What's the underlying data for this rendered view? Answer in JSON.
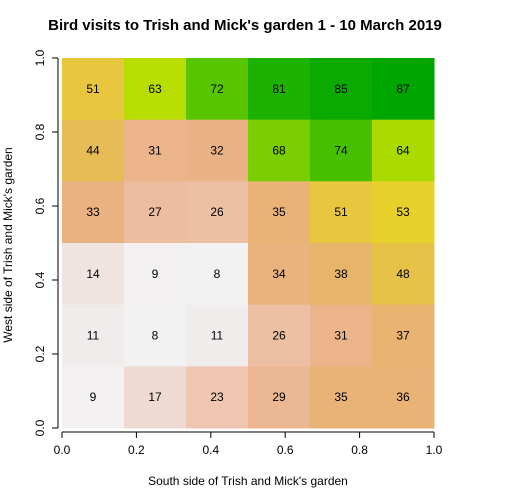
{
  "chart_data": {
    "type": "heatmap",
    "title": "Bird visits to Trish and Mick's garden 1 - 10 March 2019",
    "xlabel": "South side of Trish and Mick's garden",
    "ylabel": "West side of Trish and Mick's garden",
    "xlim": [
      0,
      1
    ],
    "ylim": [
      0,
      1
    ],
    "xticks": [
      "0.0",
      "0.2",
      "0.4",
      "0.6",
      "0.8",
      "1.0"
    ],
    "yticks": [
      "0.0",
      "0.2",
      "0.4",
      "0.6",
      "0.8",
      "1.0"
    ],
    "n_cols": 6,
    "n_rows": 6,
    "rows_top_to_bottom": [
      [
        51,
        63,
        72,
        81,
        85,
        87
      ],
      [
        44,
        31,
        32,
        68,
        74,
        64
      ],
      [
        33,
        27,
        26,
        35,
        51,
        53
      ],
      [
        14,
        9,
        8,
        34,
        38,
        48
      ],
      [
        11,
        8,
        11,
        26,
        31,
        37
      ],
      [
        9,
        17,
        23,
        29,
        35,
        36
      ]
    ],
    "color_scale": "terrain (low = white, mid = tan/yellow, high = green)",
    "colors": {
      "low": "#f2f2f2",
      "mid": "#e6b964",
      "yellow": "#e6e600",
      "high": "#00a600"
    },
    "grid": false,
    "legend": "none"
  }
}
